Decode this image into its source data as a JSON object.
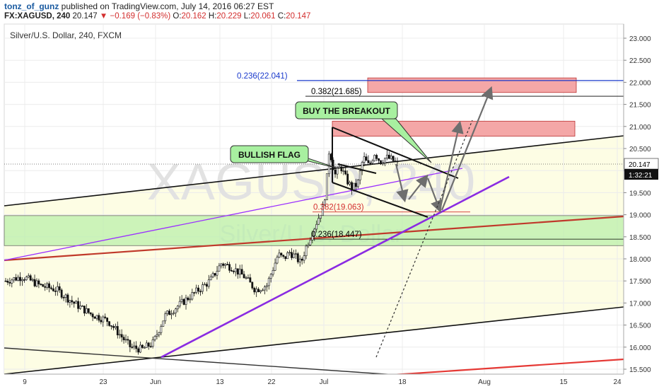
{
  "header": {
    "author": "tonz_of_gunz",
    "published": "published on TradingView.com, July 14, 2016 06:27 EST",
    "symbol": "FX:XAGUSD, 240",
    "last": "20.147",
    "change_arrow": "▼",
    "change": "−0.169 (−0.83%)",
    "open_label": "O:",
    "open": "20.162",
    "high_label": "H:",
    "high": "20.229",
    "low_label": "L:",
    "low": "20.061",
    "close_label": "C:",
    "close": "20.147"
  },
  "chart_data": {
    "type": "candlestick",
    "title": "Silver/U.S. Dollar, 240, FXCM",
    "watermark_symbol": "XAGUSD, 240",
    "watermark_name": "Silver/U.S. Dollar",
    "ylim": [
      15.35,
      23.3
    ],
    "y_ticks": [
      "23.000",
      "22.500",
      "22.000",
      "21.500",
      "21.000",
      "20.500",
      "20.000",
      "19.500",
      "19.000",
      "18.500",
      "18.000",
      "17.500",
      "17.000",
      "16.500",
      "16.000",
      "15.500"
    ],
    "x_ticks": [
      "9",
      "23",
      "Jun",
      "13",
      "22",
      "Jul",
      "18",
      "Aug",
      "15",
      "24"
    ],
    "last_price_label": "20.147",
    "countdown_label": "1:32:21",
    "price_path": [
      [
        0,
        17.5
      ],
      [
        3,
        17.6
      ],
      [
        6,
        17.4
      ],
      [
        9,
        17.3
      ],
      [
        12,
        17.0
      ],
      [
        15,
        16.75
      ],
      [
        18,
        16.6
      ],
      [
        20,
        16.3
      ],
      [
        22,
        16.0
      ],
      [
        24,
        15.95
      ],
      [
        26,
        16.1
      ],
      [
        28,
        16.7
      ],
      [
        30,
        16.9
      ],
      [
        32,
        17.1
      ],
      [
        34,
        17.3
      ],
      [
        36,
        17.5
      ],
      [
        38,
        17.9
      ],
      [
        40,
        17.8
      ],
      [
        42,
        17.6
      ],
      [
        44,
        17.3
      ],
      [
        46,
        17.4
      ],
      [
        48,
        18.1
      ],
      [
        49,
        18.0
      ],
      [
        50,
        18.15
      ],
      [
        51,
        18.05
      ],
      [
        52,
        17.9
      ],
      [
        53,
        18.3
      ],
      [
        54,
        18.6
      ],
      [
        55,
        18.9
      ],
      [
        56,
        19.2
      ],
      [
        56.5,
        19.7
      ],
      [
        57,
        20.5
      ],
      [
        57.5,
        20.2
      ],
      [
        58,
        19.9
      ],
      [
        59,
        20.1
      ],
      [
        60,
        19.8
      ],
      [
        61,
        19.6
      ],
      [
        62,
        19.7
      ],
      [
        63,
        20.3
      ],
      [
        64,
        20.1
      ],
      [
        65,
        20.4
      ],
      [
        66,
        20.2
      ],
      [
        67,
        20.3
      ],
      [
        68,
        20.25
      ],
      [
        69,
        20.15
      ]
    ],
    "rectangles": [
      {
        "name": "resistance-zone-22",
        "from": [
          0.236,
          22.041
        ],
        "y_top": 22.1,
        "y_bottom": 21.77,
        "color": "#f4a7a7"
      },
      {
        "name": "resistance-zone-21",
        "y_top": 21.12,
        "y_bottom": 20.78,
        "color": "#f4a7a7"
      },
      {
        "name": "support-zone-green",
        "y_top": 18.98,
        "y_bottom": 18.3,
        "color": "#b8f0a8"
      }
    ],
    "horizontal_levels": [
      {
        "label": "0.236(22.041)",
        "value": 22.041,
        "color": "#1a3acc"
      },
      {
        "label": "0.382(21.685)",
        "value": 21.685,
        "color": "#000000"
      },
      {
        "label": "0.382(19.063)",
        "value": 19.063,
        "color": "#d32f2f"
      },
      {
        "label": "0.236(18.447)",
        "value": 18.447,
        "color": "#000000"
      }
    ],
    "annotations": [
      {
        "text": "BUY THE BREAKOUT"
      },
      {
        "text": "BULLISH FLAG"
      }
    ],
    "grid": true,
    "legend": "none"
  }
}
